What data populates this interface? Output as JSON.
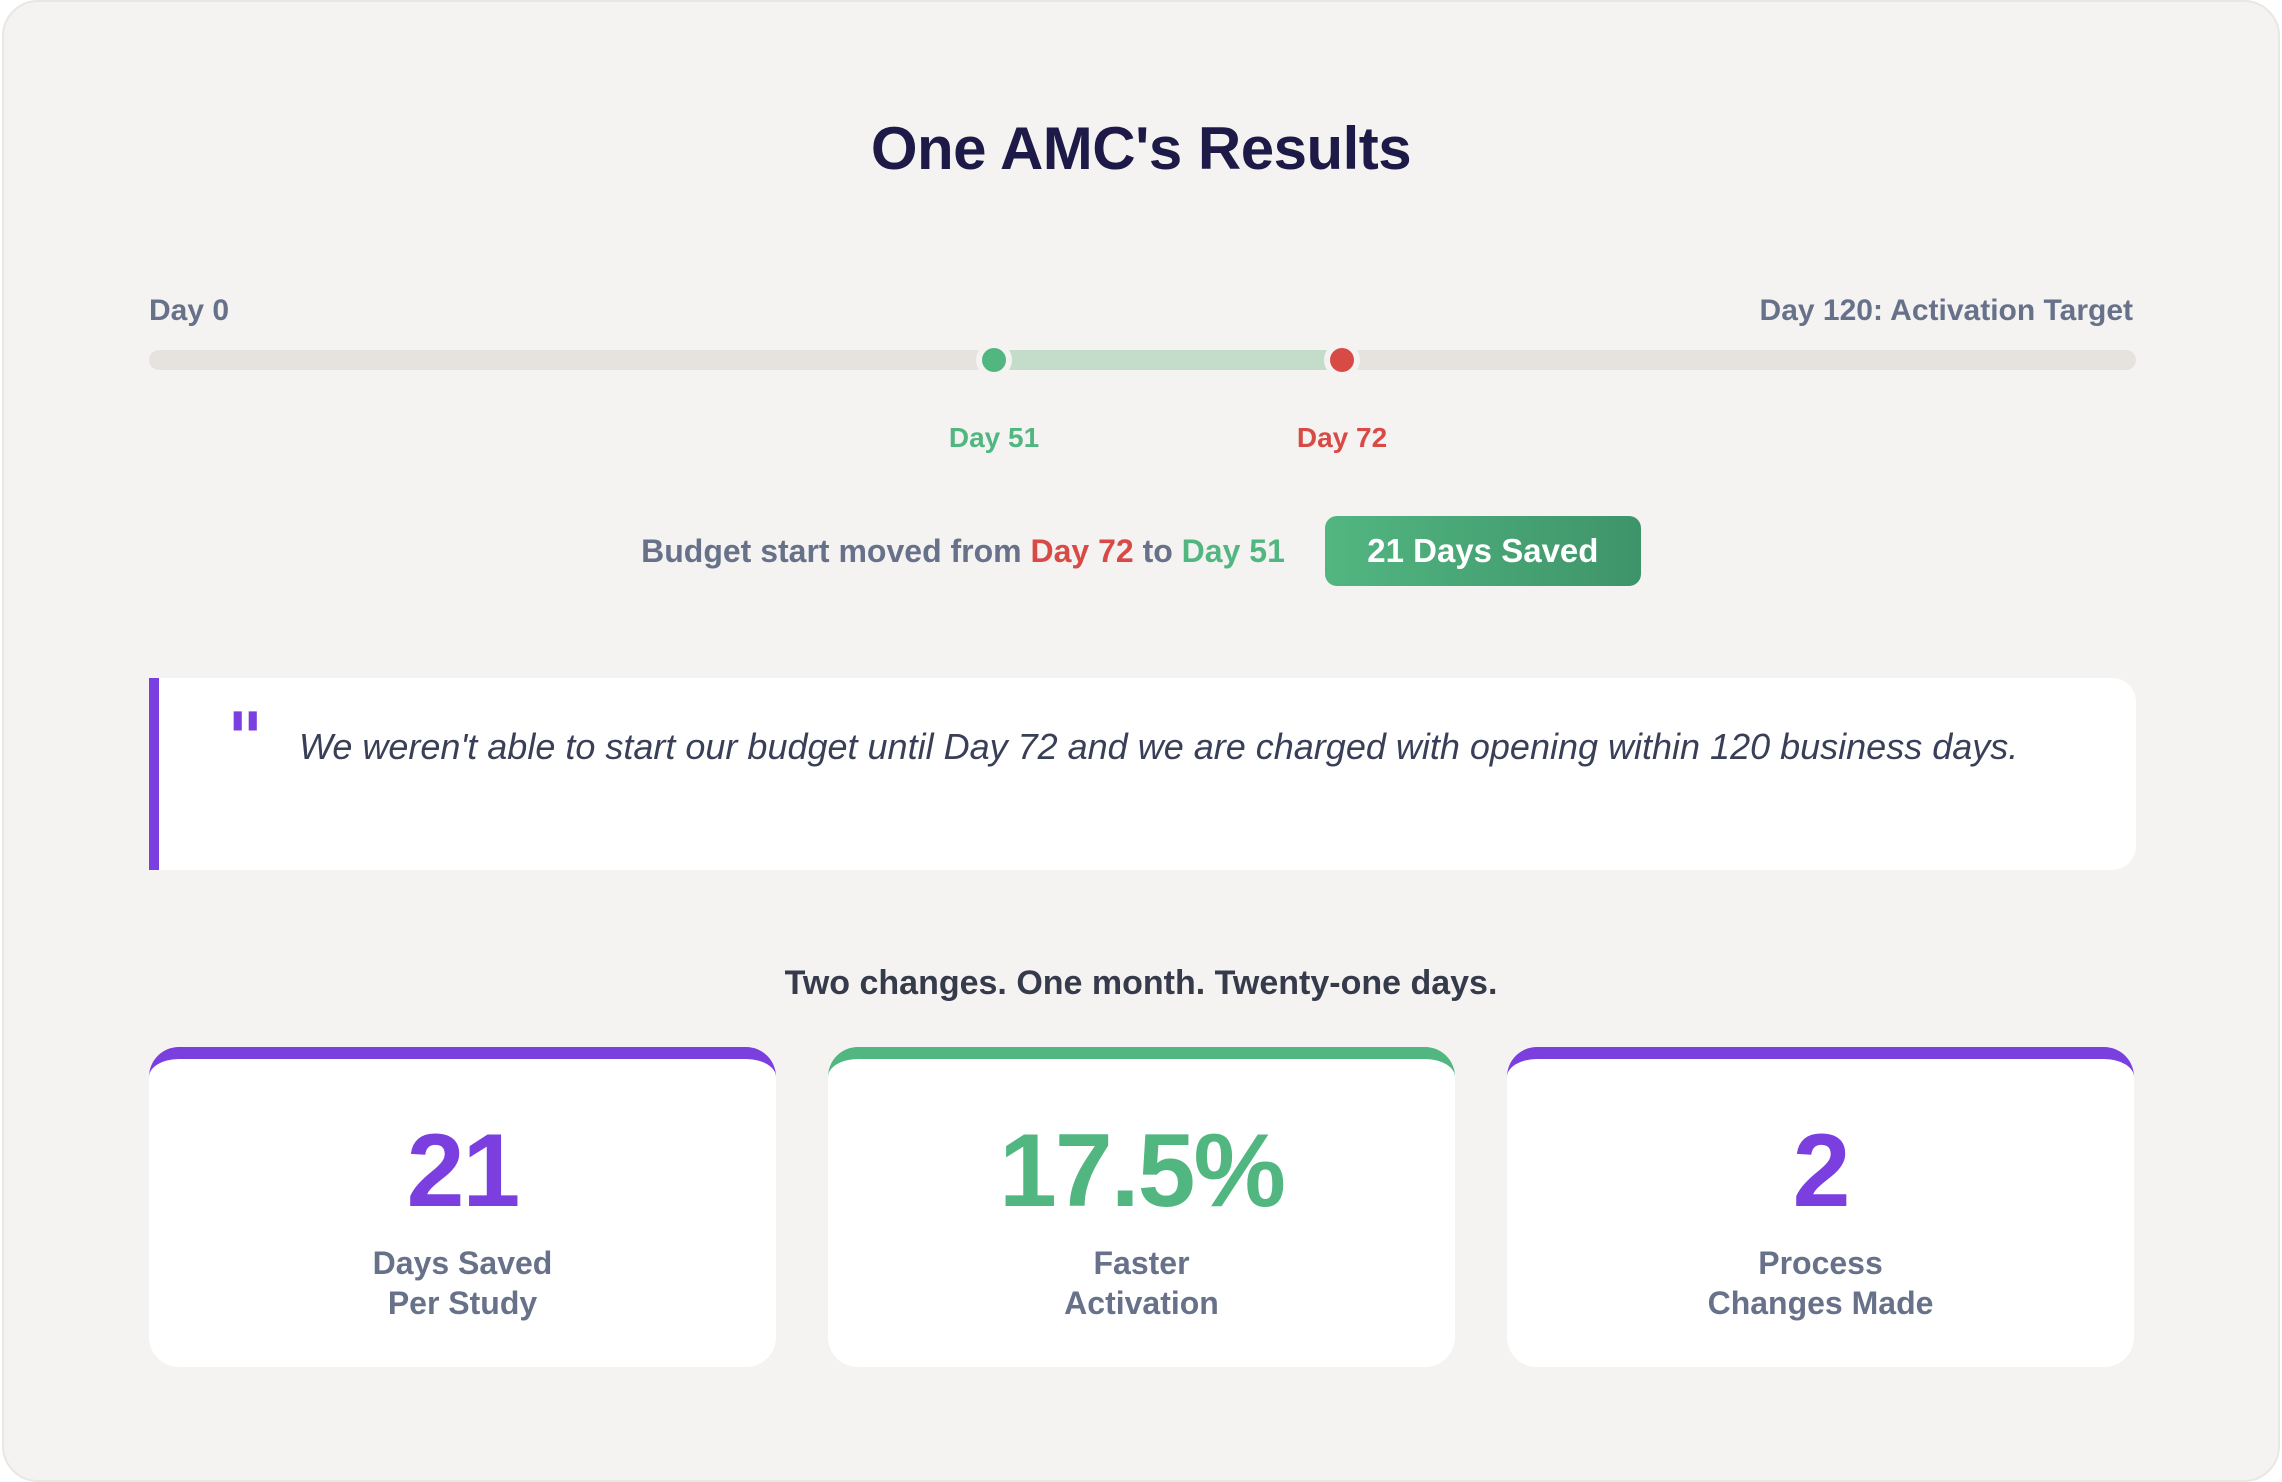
{
  "title": "One AMC's Results",
  "timeline": {
    "start_label": "Day 0",
    "end_label": "Day 120: Activation Target",
    "markers": [
      {
        "label": "Day 51",
        "day": 51,
        "color": "#52b681"
      },
      {
        "label": "Day 72",
        "day": 72,
        "color": "#d84a45"
      }
    ],
    "max_day": 120
  },
  "summary": {
    "prefix": "Budget start moved from",
    "from": "Day 72",
    "middle": "to",
    "to": "Day 51",
    "badge": "21 Days Saved"
  },
  "quote": {
    "mark": "\"",
    "text": "We weren't able to start our budget until Day 72 and we are charged with opening within 120 business days."
  },
  "tagline": "Two changes. One month. Twenty-one days.",
  "stats": [
    {
      "value": "21",
      "line1": "Days Saved",
      "line2": "Per Study",
      "color": "#7b3fe0"
    },
    {
      "value": "17.5%",
      "line1": "Faster",
      "line2": "Activation",
      "color": "#52b681"
    },
    {
      "value": "2",
      "line1": "Process",
      "line2": "Changes Made",
      "color": "#7b3fe0"
    }
  ],
  "colors": {
    "accent_purple": "#7b3fe0",
    "accent_green": "#52b681",
    "accent_red": "#d84a45",
    "heading": "#1d1a47"
  }
}
